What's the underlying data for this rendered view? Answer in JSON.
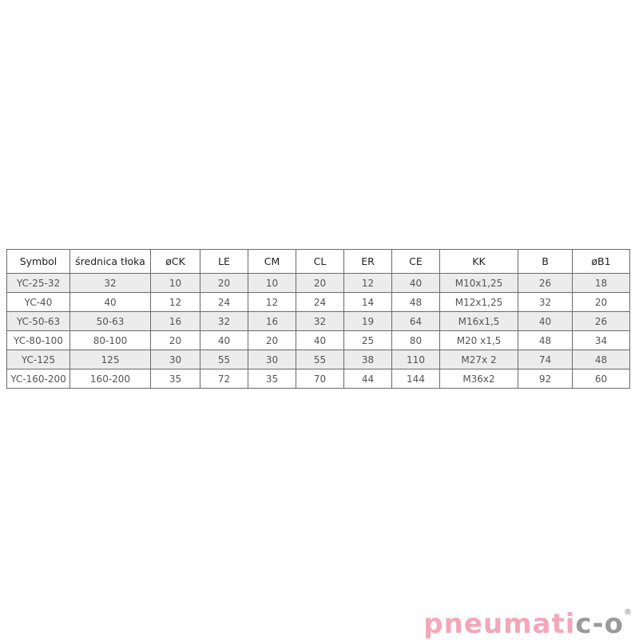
{
  "table": {
    "headers": [
      "Symbol",
      "średnica tłoka",
      "øCK",
      "LE",
      "CM",
      "CL",
      "ER",
      "CE",
      "KK",
      "B",
      "øB1"
    ],
    "rows": [
      [
        "YC-25-32",
        "32",
        "10",
        "20",
        "10",
        "20",
        "12",
        "40",
        "M10x1,25",
        "26",
        "18"
      ],
      [
        "YC-40",
        "40",
        "12",
        "24",
        "12",
        "24",
        "14",
        "48",
        "M12x1,25",
        "32",
        "20"
      ],
      [
        "YC-50-63",
        "50-63",
        "16",
        "32",
        "16",
        "32",
        "19",
        "64",
        "M16x1,5",
        "40",
        "26"
      ],
      [
        "YC-80-100",
        "80-100",
        "20",
        "40",
        "20",
        "40",
        "25",
        "80",
        "M20 x1,5",
        "48",
        "34"
      ],
      [
        "YC-125",
        "125",
        "30",
        "55",
        "30",
        "55",
        "38",
        "110",
        "M27x 2",
        "74",
        "48"
      ],
      [
        "YC-160-200",
        "160-200",
        "35",
        "72",
        "35",
        "70",
        "44",
        "144",
        "M36x2",
        "92",
        "60"
      ]
    ]
  },
  "logo": {
    "part1": "pneumati",
    "part2": "c-o",
    "mark": "®",
    "colors": {
      "pink": "#f4a7b9",
      "gray": "#9a9a9a"
    }
  }
}
